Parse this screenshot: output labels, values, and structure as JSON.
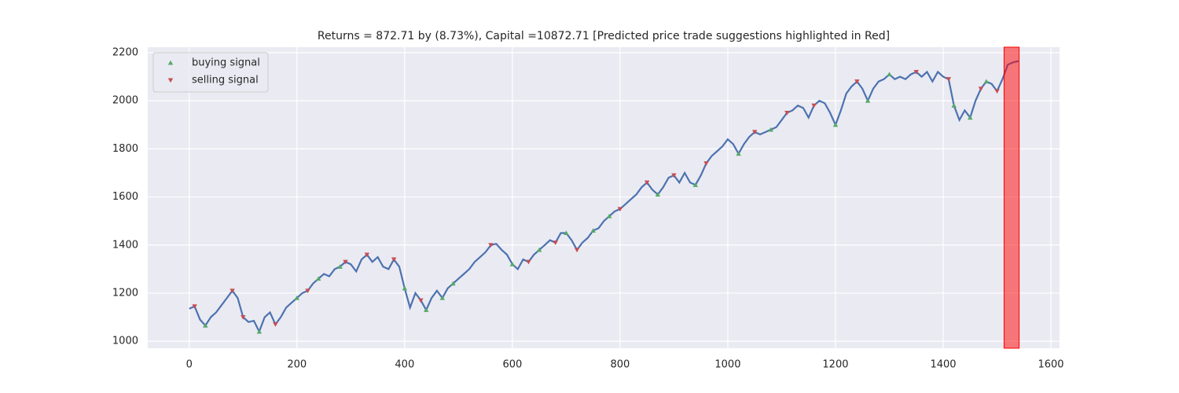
{
  "chart_data": {
    "type": "line",
    "title": "Returns = 872.71 by (8.73%), Capital =10872.71 [Predicted price trade suggestions highlighted in Red]",
    "xlim": [
      -77,
      1616
    ],
    "ylim": [
      971,
      2223
    ],
    "xticks": [
      0,
      200,
      400,
      600,
      800,
      1000,
      1200,
      1400,
      1600
    ],
    "yticks": [
      1000,
      1200,
      1400,
      1600,
      1800,
      2000,
      2200
    ],
    "grid": true,
    "legend": "upper left",
    "line": {
      "color": "#4c72b0",
      "x": [
        0,
        10,
        20,
        30,
        40,
        50,
        60,
        70,
        80,
        90,
        100,
        110,
        120,
        130,
        140,
        150,
        160,
        170,
        180,
        190,
        200,
        210,
        220,
        230,
        240,
        250,
        260,
        270,
        280,
        290,
        300,
        310,
        320,
        330,
        340,
        350,
        360,
        370,
        380,
        390,
        400,
        410,
        420,
        430,
        440,
        450,
        460,
        470,
        480,
        490,
        500,
        510,
        520,
        530,
        540,
        550,
        560,
        570,
        580,
        590,
        600,
        610,
        620,
        630,
        640,
        650,
        660,
        670,
        680,
        690,
        700,
        710,
        720,
        730,
        740,
        750,
        760,
        770,
        780,
        790,
        800,
        810,
        820,
        830,
        840,
        850,
        860,
        870,
        880,
        890,
        900,
        910,
        920,
        930,
        940,
        950,
        960,
        970,
        980,
        990,
        1000,
        1010,
        1020,
        1030,
        1040,
        1050,
        1060,
        1070,
        1080,
        1090,
        1100,
        1110,
        1120,
        1130,
        1140,
        1150,
        1160,
        1170,
        1180,
        1190,
        1200,
        1210,
        1220,
        1230,
        1240,
        1250,
        1260,
        1270,
        1280,
        1290,
        1300,
        1310,
        1320,
        1330,
        1340,
        1350,
        1360,
        1370,
        1380,
        1390,
        1400,
        1410,
        1420,
        1430,
        1440,
        1450,
        1460,
        1470,
        1480,
        1490,
        1500,
        1510,
        1520,
        1530,
        1540
      ],
      "values": [
        1135,
        1145,
        1090,
        1065,
        1100,
        1120,
        1150,
        1180,
        1210,
        1180,
        1100,
        1080,
        1085,
        1040,
        1100,
        1120,
        1070,
        1100,
        1140,
        1160,
        1180,
        1200,
        1210,
        1240,
        1260,
        1280,
        1270,
        1300,
        1310,
        1330,
        1320,
        1290,
        1340,
        1360,
        1330,
        1350,
        1310,
        1300,
        1340,
        1310,
        1220,
        1140,
        1200,
        1170,
        1130,
        1180,
        1210,
        1180,
        1220,
        1240,
        1260,
        1280,
        1300,
        1330,
        1350,
        1370,
        1400,
        1405,
        1380,
        1360,
        1320,
        1300,
        1340,
        1330,
        1360,
        1380,
        1400,
        1420,
        1410,
        1450,
        1450,
        1420,
        1380,
        1410,
        1430,
        1460,
        1470,
        1500,
        1520,
        1540,
        1550,
        1570,
        1590,
        1610,
        1640,
        1660,
        1630,
        1610,
        1640,
        1680,
        1690,
        1660,
        1700,
        1660,
        1650,
        1690,
        1740,
        1770,
        1790,
        1810,
        1840,
        1820,
        1780,
        1820,
        1850,
        1870,
        1860,
        1870,
        1880,
        1890,
        1920,
        1950,
        1960,
        1980,
        1970,
        1930,
        1980,
        2000,
        1990,
        1950,
        1900,
        1960,
        2030,
        2060,
        2080,
        2050,
        2000,
        2050,
        2080,
        2090,
        2110,
        2090,
        2100,
        2090,
        2110,
        2120,
        2100,
        2120,
        2080,
        2120,
        2100,
        2090,
        1980,
        1920,
        1960,
        1930,
        2000,
        2050,
        2080,
        2070,
        2040,
        2090,
        2150,
        2160,
        2165
      ]
    },
    "signals": [
      {
        "name": "buying signal",
        "color": "#55a868",
        "marker": "up",
        "x": [
          30,
          130,
          200,
          240,
          280,
          400,
          440,
          470,
          490,
          600,
          650,
          700,
          750,
          780,
          870,
          940,
          1020,
          1080,
          1200,
          1260,
          1300,
          1420,
          1450,
          1480
        ],
        "values": [
          1065,
          1040,
          1180,
          1260,
          1310,
          1220,
          1130,
          1180,
          1240,
          1320,
          1380,
          1450,
          1460,
          1520,
          1610,
          1650,
          1780,
          1880,
          1900,
          2000,
          2110,
          1980,
          1930,
          2080
        ]
      },
      {
        "name": "selling signal",
        "color": "#c44e52",
        "marker": "down",
        "x": [
          10,
          80,
          100,
          160,
          220,
          290,
          330,
          380,
          430,
          560,
          630,
          680,
          720,
          800,
          850,
          900,
          960,
          1050,
          1110,
          1160,
          1240,
          1350,
          1410,
          1470,
          1500
        ],
        "values": [
          1145,
          1210,
          1100,
          1070,
          1210,
          1330,
          1360,
          1340,
          1170,
          1400,
          1330,
          1410,
          1380,
          1550,
          1660,
          1690,
          1740,
          1870,
          1950,
          1980,
          2080,
          2120,
          2090,
          2050,
          2040
        ]
      }
    ],
    "highlight": {
      "xrange": [
        1513,
        1541
      ],
      "color": "#ff0000",
      "alpha": 0.5
    }
  }
}
